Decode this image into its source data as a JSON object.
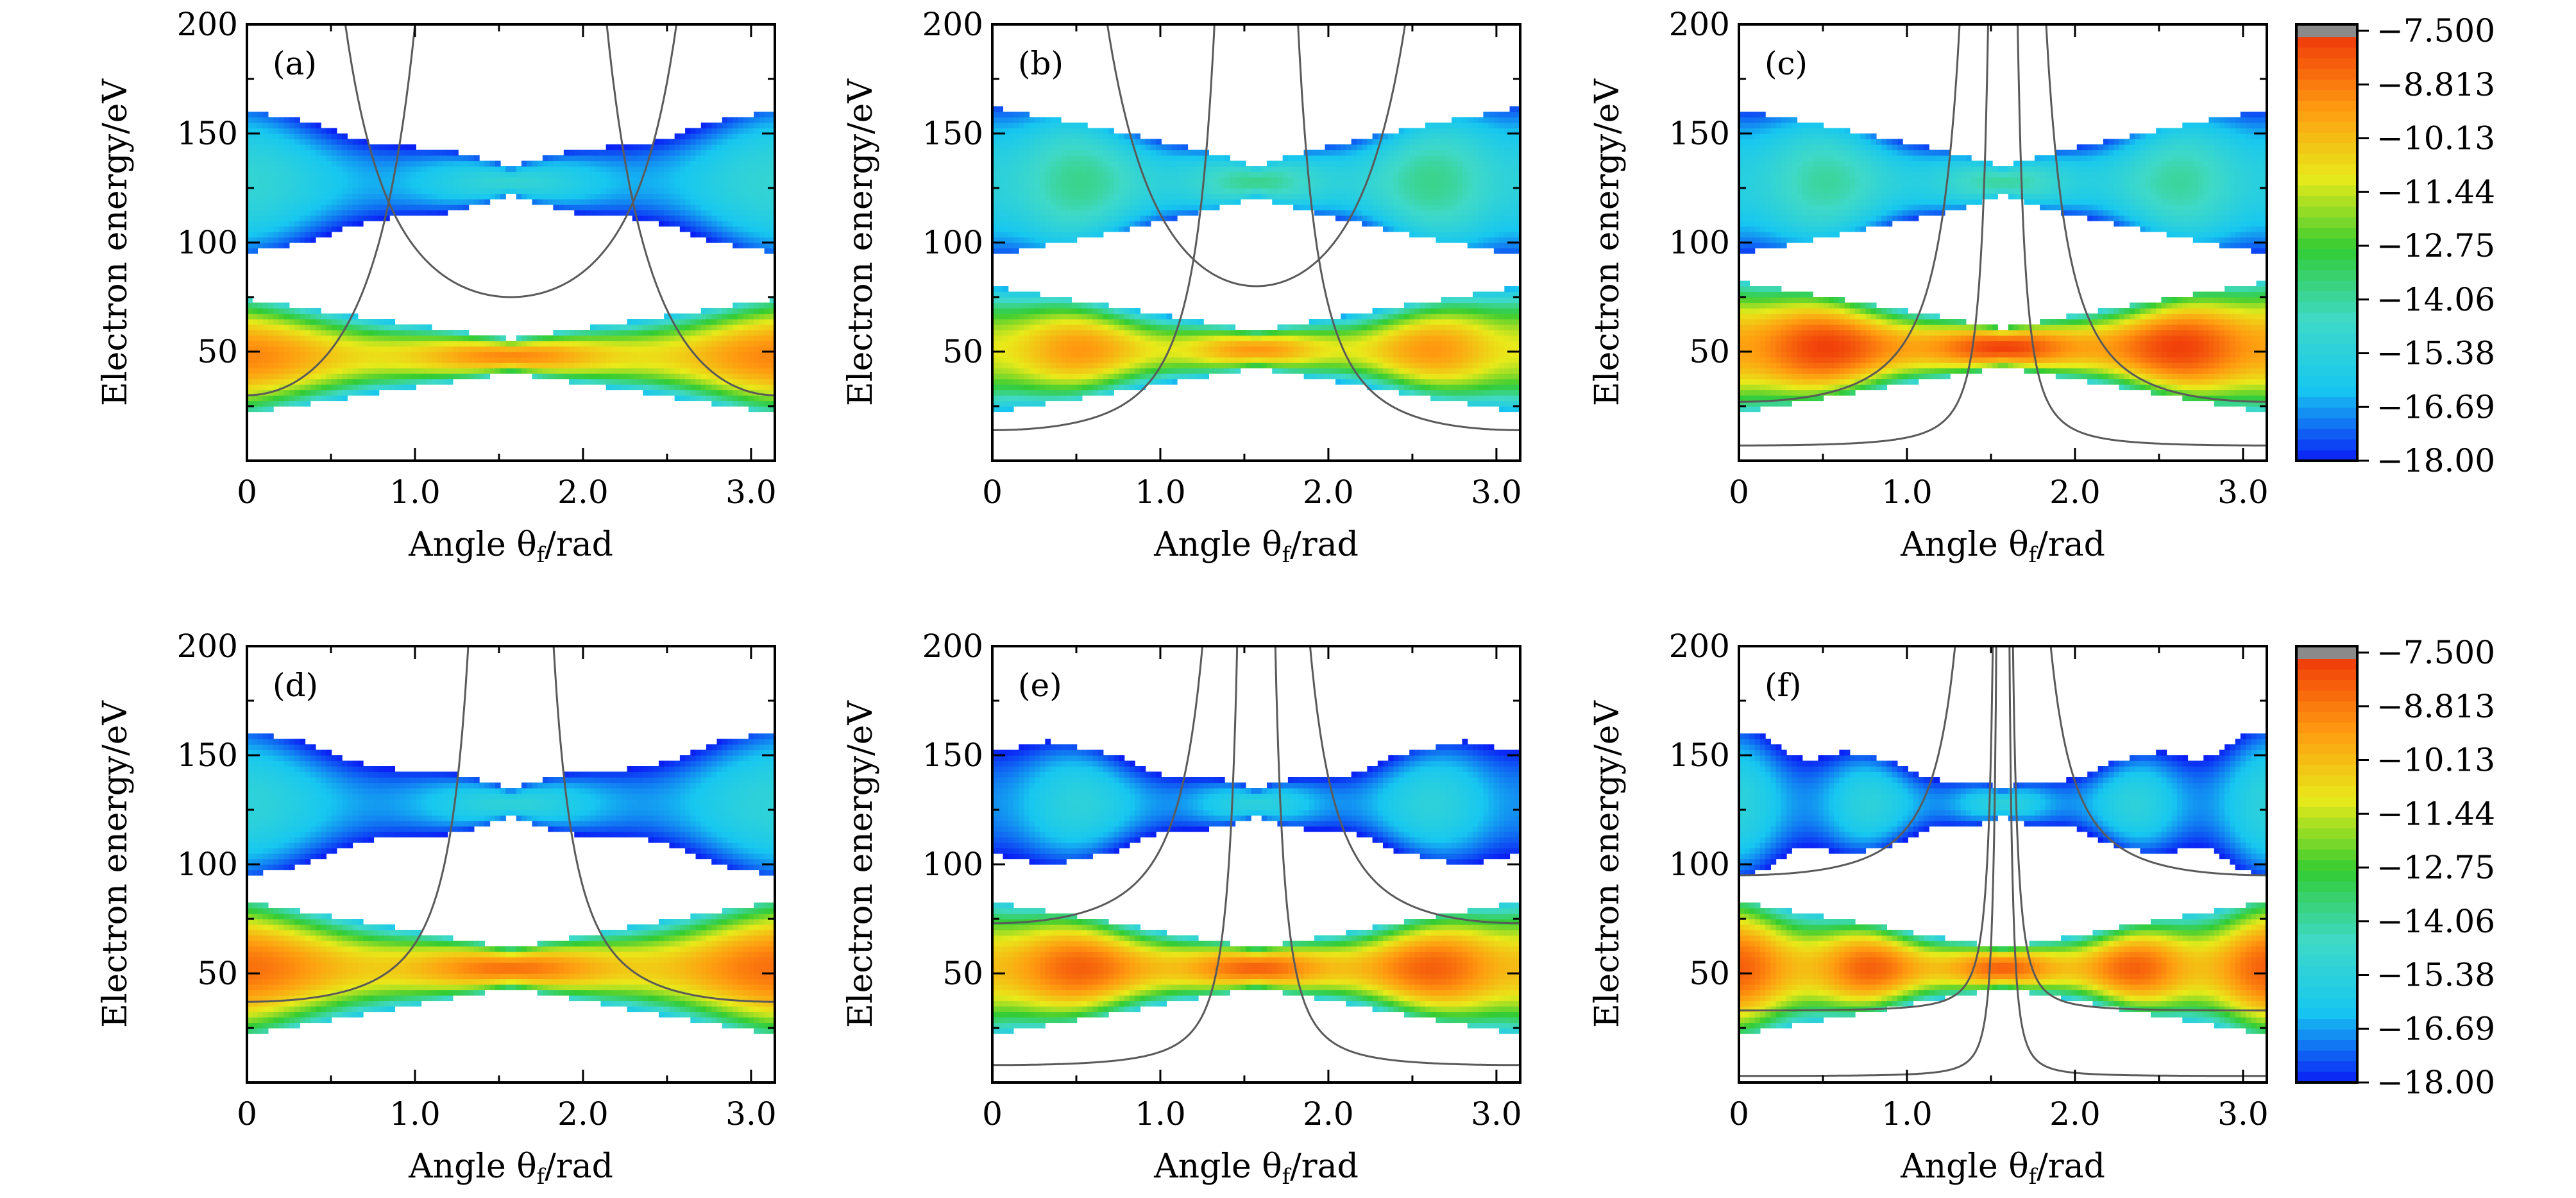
{
  "chart_data": {
    "type": "heatmap",
    "colormap": [
      "#0a1ef5",
      "#17c7f0",
      "#3fd9c8",
      "#33cc33",
      "#e8ea1a",
      "#ff9a10",
      "#f03a0a",
      "#8a8a8a"
    ],
    "colorbar": {
      "ticks": [
        "−7.500",
        "−8.813",
        "−10.13",
        "−11.44",
        "−12.75",
        "−14.06",
        "−15.38",
        "−16.69",
        "−18.00"
      ],
      "range": [
        -18.0,
        -7.5
      ]
    },
    "panels": [
      {
        "label": "(a)",
        "xlabel": "Angle θf/rad",
        "ylabel": "Electron energy/eV",
        "xlim": [
          0,
          3.14159
        ],
        "ylim": [
          0,
          200
        ],
        "xticks": [
          "0",
          "1.0",
          "2.0",
          "3.0"
        ],
        "yticks": [
          "50",
          "100",
          "150",
          "200"
        ],
        "bands": {
          "lower": [
            22,
            74
          ],
          "upper": [
            95,
            160
          ],
          "mid": 128
        },
        "lower_peak": -8.9,
        "upper_peak": -15.0,
        "lobes": 2,
        "curves": [
          {
            "a": 75,
            "b": 55,
            "dir": -1
          },
          {
            "a": 30,
            "b": 70,
            "dir": 1
          }
        ]
      },
      {
        "label": "(b)",
        "xlabel": "Angle θf/rad",
        "ylabel": "Electron energy/eV",
        "xlim": [
          0,
          3.14159
        ],
        "ylim": [
          0,
          200
        ],
        "xticks": [
          "0",
          "1.0",
          "2.0",
          "3.0"
        ],
        "yticks": [
          "50",
          "100",
          "150",
          "200"
        ],
        "bands": {
          "lower": [
            22,
            80
          ],
          "upper": [
            94,
            162
          ],
          "mid": 128
        },
        "lower_peak": -9.2,
        "upper_peak": -13.8,
        "lobes": 3,
        "curves": [
          {
            "a": 80,
            "b": 80,
            "dir": -1
          },
          {
            "a": 14,
            "b": 12,
            "dir": 1
          }
        ]
      },
      {
        "label": "(c)",
        "xlabel": "Angle θf/rad",
        "ylabel": "Electron energy/eV",
        "xlim": [
          0,
          3.14159
        ],
        "ylim": [
          0,
          200
        ],
        "xticks": [
          "0",
          "1.0",
          "2.0",
          "3.0"
        ],
        "yticks": [
          "50",
          "100",
          "150",
          "200"
        ],
        "bands": {
          "lower": [
            22,
            82
          ],
          "upper": [
            94,
            160
          ],
          "mid": 128
        },
        "lower_peak": -7.6,
        "upper_peak": -14.0,
        "lobes": 3,
        "curves": [
          {
            "a": 27,
            "b": 12,
            "dir": 1
          },
          {
            "a": 7,
            "b": 1.5,
            "dir": 1
          }
        ]
      },
      {
        "label": "(d)",
        "xlabel": "Angle θf/rad",
        "ylabel": "Electron energy/eV",
        "xlim": [
          0,
          3.14159
        ],
        "ylim": [
          0,
          200
        ],
        "xticks": [
          "0",
          "1.0",
          "2.0",
          "3.0"
        ],
        "yticks": [
          "50",
          "100",
          "150",
          "200"
        ],
        "bands": {
          "lower": [
            22,
            83
          ],
          "upper": [
            94,
            160
          ],
          "mid": 128
        },
        "lower_peak": -8.5,
        "upper_peak": -15.2,
        "lobes": 2,
        "curves": [
          {
            "a": 37,
            "b": 11,
            "dir": 1
          }
        ]
      },
      {
        "label": "(e)",
        "xlabel": "Angle θf/rad",
        "ylabel": "Electron energy/eV",
        "xlim": [
          0,
          3.14159
        ],
        "ylim": [
          0,
          200
        ],
        "xticks": [
          "0",
          "1.0",
          "2.0",
          "3.0"
        ],
        "yticks": [
          "50",
          "100",
          "150",
          "200"
        ],
        "bands": {
          "lower": [
            22,
            83
          ],
          "upper": [
            94,
            160
          ],
          "mid": 128
        },
        "lower_peak": -8.2,
        "upper_peak": -15.3,
        "lobes": 3,
        "curves": [
          {
            "a": 73,
            "b": 14,
            "dir": 1
          },
          {
            "a": 8,
            "b": 2.5,
            "dir": 1
          }
        ]
      },
      {
        "label": "(f)",
        "xlabel": "Angle θf/rad",
        "ylabel": "Electron energy/eV",
        "xlim": [
          0,
          3.14159
        ],
        "ylim": [
          0,
          200
        ],
        "xticks": [
          "0",
          "1.0",
          "2.0",
          "3.0"
        ],
        "yticks": [
          "50",
          "100",
          "150",
          "200"
        ],
        "bands": {
          "lower": [
            22,
            83
          ],
          "upper": [
            94,
            160
          ],
          "mid": 128
        },
        "lower_peak": -8.2,
        "upper_peak": -15.3,
        "lobes": 4,
        "curves": [
          {
            "a": 95,
            "b": 9,
            "dir": 1
          },
          {
            "a": 3,
            "b": 0.3,
            "dir": 1
          },
          {
            "a": 33,
            "b": 0.6,
            "dir": 1
          }
        ]
      }
    ]
  }
}
